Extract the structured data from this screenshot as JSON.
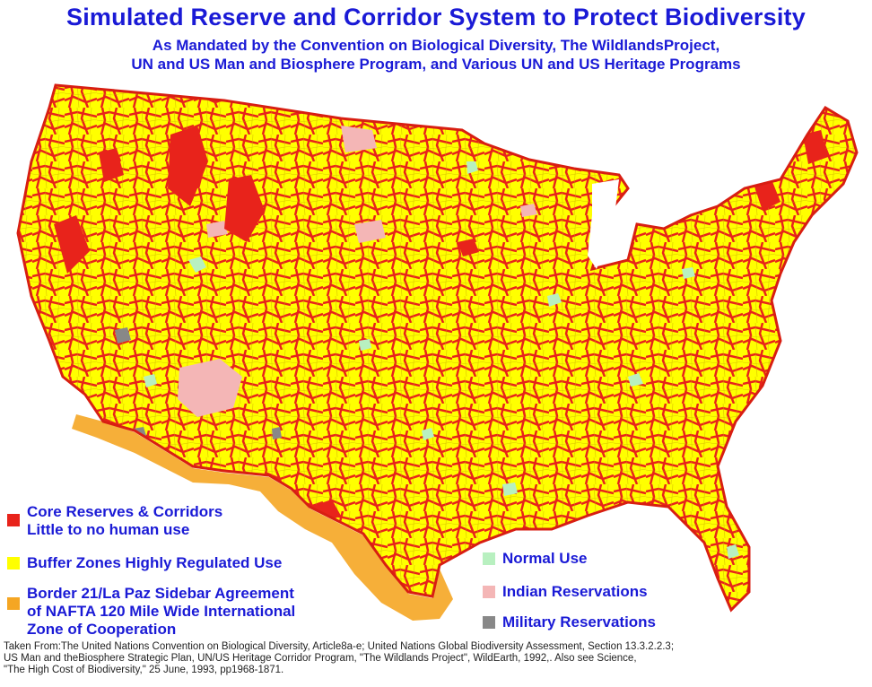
{
  "header": {
    "title": "Simulated Reserve and Corridor System to Protect Biodiversity",
    "subtitle_line1": "As Mandated by the Convention on Biological Diversity, The WildlandsProject,",
    "subtitle_line2": "UN and US Man and Biosphere Program, and Various UN and US Heritage Programs"
  },
  "legend": {
    "core": {
      "line1": "Core Reserves & Corridors",
      "line2": "Little to no human use",
      "color": "#e8231b"
    },
    "buffer": {
      "line1": "Buffer Zones Highly Regulated Use",
      "color": "#ffff00"
    },
    "border": {
      "line1": "Border 21/La Paz Sidebar Agreement",
      "line2": "of NAFTA 120 Mile Wide International",
      "line3": "Zone of Cooperation",
      "color": "#f5a623"
    },
    "normal": {
      "line1": "Normal Use",
      "color": "#b8f0c0"
    },
    "indian": {
      "line1": "Indian Reservations",
      "color": "#f4b6b6"
    },
    "military": {
      "line1": "Military Reservations",
      "color": "#888888"
    }
  },
  "footnote": {
    "line1": "Taken From:The United Nations Convention on Biological Diversity, Article8a-e; United Nations Global Biodiversity Assessment, Section 13.3.2.2.3;",
    "line2": "US Man and theBiosphere Strategic Plan, UN/US Heritage Corridor Program, \"The Wildlands Project\", WildEarth, 1992,. Also see Science,",
    "line3": "\"The High Cost of Biodiversity,\" 25 June, 1993, pp1968-1871."
  }
}
